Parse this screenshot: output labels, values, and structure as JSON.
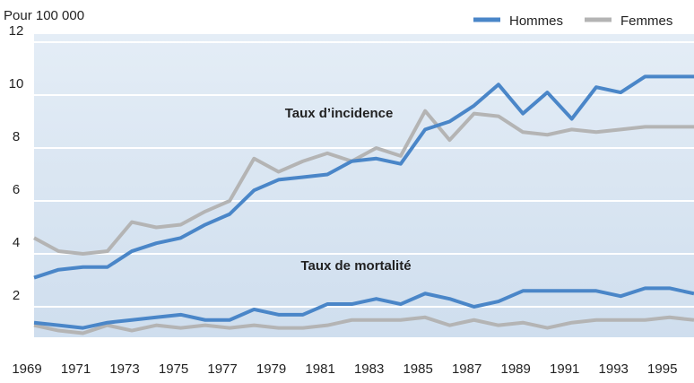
{
  "chart_data": {
    "type": "line",
    "y_axis_label": "Pour 100 000",
    "x": [
      1969,
      1970,
      1971,
      1972,
      1973,
      1974,
      1975,
      1976,
      1977,
      1978,
      1979,
      1980,
      1981,
      1982,
      1983,
      1984,
      1985,
      1986,
      1987,
      1988,
      1989,
      1990,
      1991,
      1992,
      1993,
      1994,
      1995,
      1996
    ],
    "groups": [
      {
        "label": "Taux d’incidence",
        "series": [
          {
            "name": "Hommes",
            "color": "#4a86c8",
            "values": [
              3.1,
              3.4,
              3.5,
              3.5,
              4.1,
              4.4,
              4.6,
              5.1,
              5.5,
              6.4,
              6.8,
              6.9,
              7.0,
              7.5,
              7.6,
              7.4,
              8.7,
              9.0,
              9.6,
              10.4,
              9.3,
              10.1,
              9.1,
              10.3,
              10.1,
              10.7,
              10.7,
              10.7
            ]
          },
          {
            "name": "Femmes",
            "color": "#b4b4b4",
            "values": [
              4.6,
              4.1,
              4.0,
              4.1,
              5.2,
              5.0,
              5.1,
              5.6,
              6.0,
              7.6,
              7.1,
              7.5,
              7.8,
              7.5,
              8.0,
              7.7,
              9.4,
              8.3,
              9.3,
              9.2,
              8.6,
              8.5,
              8.7,
              8.6,
              8.7,
              8.8,
              8.8,
              8.8
            ]
          }
        ]
      },
      {
        "label": "Taux de mortalité",
        "series": [
          {
            "color": "#4a86c8",
            "values": [
              1.4,
              1.3,
              1.2,
              1.4,
              1.5,
              1.6,
              1.7,
              1.5,
              1.5,
              1.9,
              1.7,
              1.7,
              2.1,
              2.1,
              2.3,
              2.1,
              2.5,
              2.3,
              2.0,
              2.2,
              2.6,
              2.6,
              2.6,
              2.6,
              2.4,
              2.7,
              2.7,
              2.5
            ]
          },
          {
            "color": "#b4b4b4",
            "values": [
              1.3,
              1.1,
              1.0,
              1.3,
              1.1,
              1.3,
              1.2,
              1.3,
              1.2,
              1.3,
              1.2,
              1.2,
              1.3,
              1.5,
              1.5,
              1.5,
              1.6,
              1.3,
              1.5,
              1.3,
              1.4,
              1.2,
              1.4,
              1.5,
              1.5,
              1.5,
              1.6,
              1.5
            ]
          }
        ]
      }
    ],
    "xlim": [
      1969,
      1996
    ],
    "xticks": [
      1969,
      1971,
      1973,
      1975,
      1977,
      1979,
      1981,
      1983,
      1985,
      1987,
      1989,
      1991,
      1993,
      1995
    ],
    "ylim": [
      1,
      12
    ],
    "yticks": [
      2,
      4,
      6,
      8,
      10,
      12
    ],
    "grid": true,
    "legend": "top-right"
  }
}
